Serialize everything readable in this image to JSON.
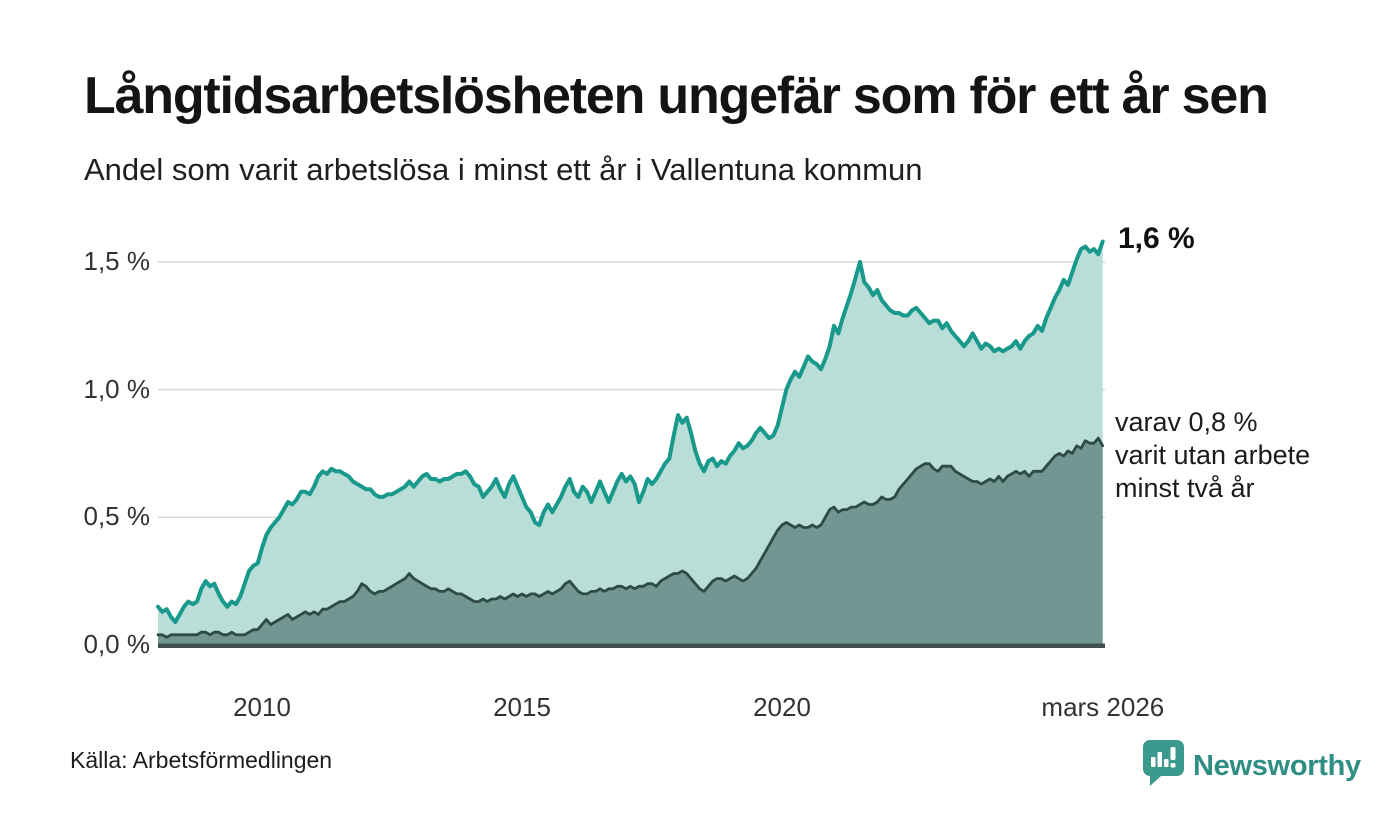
{
  "header": {
    "title": "Långtidsarbetslösheten ungefär som för ett år sen",
    "subtitle": "Andel som varit arbetslösa i minst ett år i Vallentuna kommun"
  },
  "footer": {
    "source": "Källa: Arbetsförmedlingen",
    "brand": "Newsworthy",
    "brand_color": "#3b998d"
  },
  "chart_data": {
    "type": "area",
    "title": "Långtidsarbetslösheten ungefär som för ett år sen",
    "subtitle": "Andel som varit arbetslösa i minst ett år i Vallentuna kommun",
    "unit": "%",
    "x_start_year": 2008,
    "x_step_months": 1,
    "x_end_label": "mars 2026",
    "ylim": [
      0,
      1.65
    ],
    "grid": "horizontal",
    "legend_position": "end-of-line-labels",
    "colors": {
      "grid": "#d9d9d9",
      "axis": "#3e4f4c",
      "text": "#333333"
    },
    "y_ticks": [
      {
        "label": "0,0 %",
        "value": 0.0
      },
      {
        "label": "0,5 %",
        "value": 0.5
      },
      {
        "label": "1,0 %",
        "value": 1.0
      },
      {
        "label": "1,5 %",
        "value": 1.5
      }
    ],
    "x_ticks": [
      {
        "label": "2010",
        "year": 2010
      },
      {
        "label": "2015",
        "year": 2015
      },
      {
        "label": "2020",
        "year": 2020
      },
      {
        "label": "mars 2026",
        "year": 2026.17
      }
    ],
    "series": [
      {
        "name": "Andel som varit arbetslösa i minst ett år",
        "dom_name": "series-minst-ett-ar",
        "line_color": "#18998c",
        "fill_color": "#b9ddd7",
        "line_width": 4,
        "end_label": "1,6 %",
        "end_value": "1,6 %",
        "values": [
          0.15,
          0.13,
          0.14,
          0.11,
          0.09,
          0.12,
          0.15,
          0.17,
          0.16,
          0.17,
          0.22,
          0.25,
          0.23,
          0.24,
          0.2,
          0.17,
          0.15,
          0.17,
          0.16,
          0.19,
          0.24,
          0.29,
          0.31,
          0.32,
          0.38,
          0.43,
          0.46,
          0.48,
          0.5,
          0.53,
          0.56,
          0.55,
          0.57,
          0.6,
          0.6,
          0.59,
          0.62,
          0.66,
          0.68,
          0.67,
          0.69,
          0.68,
          0.68,
          0.67,
          0.66,
          0.64,
          0.63,
          0.62,
          0.61,
          0.61,
          0.59,
          0.58,
          0.58,
          0.59,
          0.59,
          0.6,
          0.61,
          0.62,
          0.64,
          0.62,
          0.64,
          0.66,
          0.67,
          0.65,
          0.65,
          0.64,
          0.65,
          0.65,
          0.66,
          0.67,
          0.67,
          0.68,
          0.66,
          0.63,
          0.62,
          0.58,
          0.6,
          0.62,
          0.65,
          0.61,
          0.58,
          0.63,
          0.66,
          0.62,
          0.58,
          0.54,
          0.52,
          0.48,
          0.47,
          0.52,
          0.55,
          0.52,
          0.55,
          0.58,
          0.62,
          0.65,
          0.6,
          0.58,
          0.62,
          0.6,
          0.56,
          0.6,
          0.64,
          0.6,
          0.56,
          0.6,
          0.64,
          0.67,
          0.64,
          0.66,
          0.63,
          0.56,
          0.6,
          0.65,
          0.63,
          0.65,
          0.68,
          0.71,
          0.73,
          0.82,
          0.9,
          0.87,
          0.89,
          0.83,
          0.76,
          0.71,
          0.68,
          0.72,
          0.73,
          0.7,
          0.72,
          0.71,
          0.74,
          0.76,
          0.79,
          0.77,
          0.78,
          0.8,
          0.83,
          0.85,
          0.83,
          0.81,
          0.82,
          0.86,
          0.93,
          1.0,
          1.04,
          1.07,
          1.05,
          1.09,
          1.13,
          1.11,
          1.1,
          1.08,
          1.12,
          1.17,
          1.25,
          1.22,
          1.28,
          1.33,
          1.38,
          1.44,
          1.5,
          1.42,
          1.4,
          1.37,
          1.39,
          1.35,
          1.33,
          1.31,
          1.3,
          1.3,
          1.29,
          1.29,
          1.31,
          1.32,
          1.3,
          1.28,
          1.26,
          1.27,
          1.27,
          1.24,
          1.26,
          1.23,
          1.21,
          1.19,
          1.17,
          1.19,
          1.22,
          1.19,
          1.16,
          1.18,
          1.17,
          1.15,
          1.16,
          1.15,
          1.16,
          1.17,
          1.19,
          1.16,
          1.19,
          1.21,
          1.22,
          1.25,
          1.23,
          1.28,
          1.32,
          1.36,
          1.39,
          1.43,
          1.41,
          1.46,
          1.51,
          1.55,
          1.56,
          1.54,
          1.55,
          1.53,
          1.58
        ]
      },
      {
        "name": "varav utan arbete minst två år",
        "dom_name": "series-minst-tva-ar",
        "line_color": "#2d4a47",
        "fill_color": "#729792",
        "line_width": 2.8,
        "end_label_lines": [
          "varav 0,8 %",
          "varit utan arbete",
          "minst två år"
        ],
        "end_value": "0,8 %",
        "values": [
          0.04,
          0.04,
          0.03,
          0.04,
          0.04,
          0.04,
          0.04,
          0.04,
          0.04,
          0.04,
          0.05,
          0.05,
          0.04,
          0.05,
          0.05,
          0.04,
          0.04,
          0.05,
          0.04,
          0.04,
          0.04,
          0.05,
          0.06,
          0.06,
          0.08,
          0.1,
          0.08,
          0.09,
          0.1,
          0.11,
          0.12,
          0.1,
          0.11,
          0.12,
          0.13,
          0.12,
          0.13,
          0.12,
          0.14,
          0.14,
          0.15,
          0.16,
          0.17,
          0.17,
          0.18,
          0.19,
          0.21,
          0.24,
          0.23,
          0.21,
          0.2,
          0.21,
          0.21,
          0.22,
          0.23,
          0.24,
          0.25,
          0.26,
          0.28,
          0.26,
          0.25,
          0.24,
          0.23,
          0.22,
          0.22,
          0.21,
          0.21,
          0.22,
          0.21,
          0.2,
          0.2,
          0.19,
          0.18,
          0.17,
          0.17,
          0.18,
          0.17,
          0.18,
          0.18,
          0.19,
          0.18,
          0.19,
          0.2,
          0.19,
          0.2,
          0.19,
          0.2,
          0.2,
          0.19,
          0.2,
          0.21,
          0.2,
          0.21,
          0.22,
          0.24,
          0.25,
          0.23,
          0.21,
          0.2,
          0.2,
          0.21,
          0.21,
          0.22,
          0.21,
          0.22,
          0.22,
          0.23,
          0.23,
          0.22,
          0.23,
          0.22,
          0.23,
          0.23,
          0.24,
          0.24,
          0.23,
          0.25,
          0.26,
          0.27,
          0.28,
          0.28,
          0.29,
          0.28,
          0.26,
          0.24,
          0.22,
          0.21,
          0.23,
          0.25,
          0.26,
          0.26,
          0.25,
          0.26,
          0.27,
          0.26,
          0.25,
          0.26,
          0.28,
          0.3,
          0.33,
          0.36,
          0.39,
          0.42,
          0.45,
          0.47,
          0.48,
          0.47,
          0.46,
          0.47,
          0.46,
          0.46,
          0.47,
          0.46,
          0.47,
          0.5,
          0.53,
          0.54,
          0.52,
          0.53,
          0.53,
          0.54,
          0.54,
          0.55,
          0.56,
          0.55,
          0.55,
          0.56,
          0.58,
          0.57,
          0.57,
          0.58,
          0.61,
          0.63,
          0.65,
          0.67,
          0.69,
          0.7,
          0.71,
          0.71,
          0.69,
          0.68,
          0.7,
          0.7,
          0.7,
          0.68,
          0.67,
          0.66,
          0.65,
          0.64,
          0.64,
          0.63,
          0.64,
          0.65,
          0.64,
          0.66,
          0.64,
          0.66,
          0.67,
          0.68,
          0.67,
          0.68,
          0.66,
          0.68,
          0.68,
          0.68,
          0.7,
          0.72,
          0.74,
          0.75,
          0.74,
          0.76,
          0.75,
          0.78,
          0.77,
          0.8,
          0.79,
          0.79,
          0.81,
          0.78
        ]
      }
    ]
  }
}
